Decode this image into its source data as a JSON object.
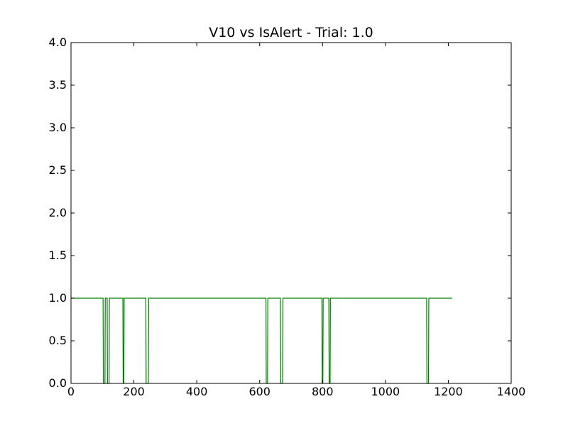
{
  "chart_data": {
    "type": "line",
    "title": "V10 vs IsAlert - Trial: 1.0",
    "xlabel": "",
    "ylabel": "",
    "xlim": [
      0,
      1400
    ],
    "ylim": [
      0,
      4.0
    ],
    "x_ticks": [
      0,
      200,
      400,
      600,
      800,
      1000,
      1200,
      1400
    ],
    "x_tick_labels": [
      "0",
      "200",
      "400",
      "600",
      "800",
      "1000",
      "1200",
      "1400"
    ],
    "y_ticks": [
      0.0,
      0.5,
      1.0,
      1.5,
      2.0,
      2.5,
      3.0,
      3.5,
      4.0
    ],
    "y_tick_labels": [
      "0.0",
      "0.5",
      "1.0",
      "1.5",
      "2.0",
      "2.5",
      "3.0",
      "3.5",
      "4.0"
    ],
    "grid": false,
    "series": [
      {
        "color": "#008000",
        "points": [
          [
            0,
            1
          ],
          [
            102,
            1
          ],
          [
            103,
            0
          ],
          [
            108,
            0
          ],
          [
            109,
            1
          ],
          [
            115,
            1
          ],
          [
            116,
            0
          ],
          [
            121,
            0
          ],
          [
            122,
            1
          ],
          [
            165,
            1
          ],
          [
            166,
            0
          ],
          [
            168,
            0
          ],
          [
            169,
            1
          ],
          [
            238,
            1
          ],
          [
            239,
            0
          ],
          [
            246,
            0
          ],
          [
            247,
            1
          ],
          [
            620,
            1
          ],
          [
            621,
            0
          ],
          [
            625,
            0
          ],
          [
            626,
            1
          ],
          [
            666,
            1
          ],
          [
            667,
            0
          ],
          [
            673,
            0
          ],
          [
            674,
            1
          ],
          [
            798,
            1
          ],
          [
            799,
            0
          ],
          [
            801,
            0
          ],
          [
            802,
            1
          ],
          [
            820,
            1
          ],
          [
            821,
            0
          ],
          [
            824,
            0
          ],
          [
            825,
            1
          ],
          [
            1131,
            1
          ],
          [
            1132,
            0
          ],
          [
            1137,
            0
          ],
          [
            1138,
            1
          ],
          [
            1212,
            1
          ]
        ]
      }
    ]
  }
}
